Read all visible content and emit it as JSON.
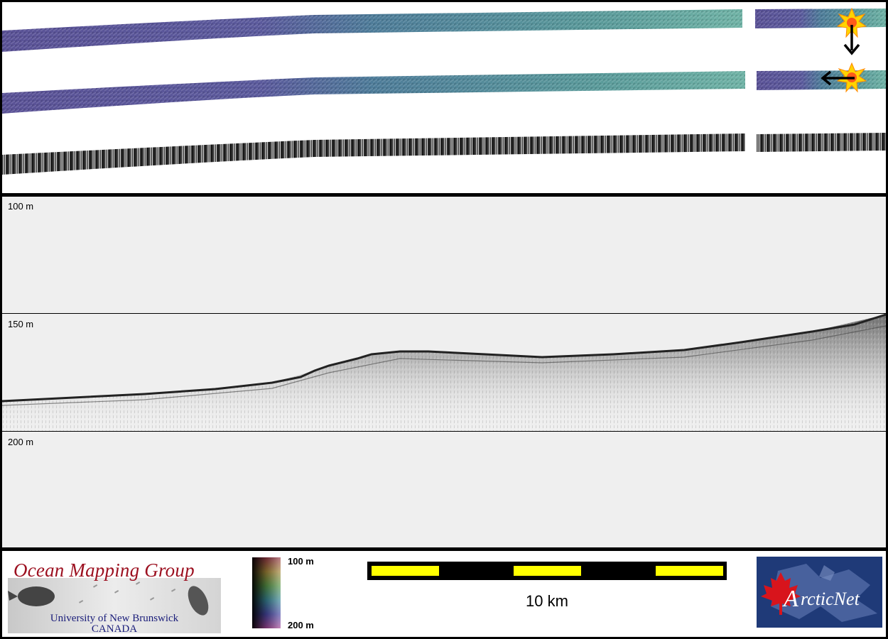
{
  "profile": {
    "depth_labels": [
      "100 m",
      "150 m",
      "200 m"
    ]
  },
  "legend": {
    "org_title": "Ocean Mapping Group",
    "org_line1": "University of New Brunswick",
    "org_line2": "CANADA",
    "colorbar_top": "100 m",
    "colorbar_bottom": "200 m",
    "scale_text": "10 km",
    "partner_logo_text": "ArcticNet"
  },
  "colors": {
    "omg_red": "#9c1020",
    "unb_blue": "#1a1d7a",
    "scale_yellow": "#ffff00",
    "arcticnet_navy": "#1f3a78",
    "maple_red": "#d8141c"
  },
  "icons": [
    "sun-marker-icon",
    "arrow-down-icon",
    "arrow-left-icon",
    "maple-leaf-icon"
  ]
}
